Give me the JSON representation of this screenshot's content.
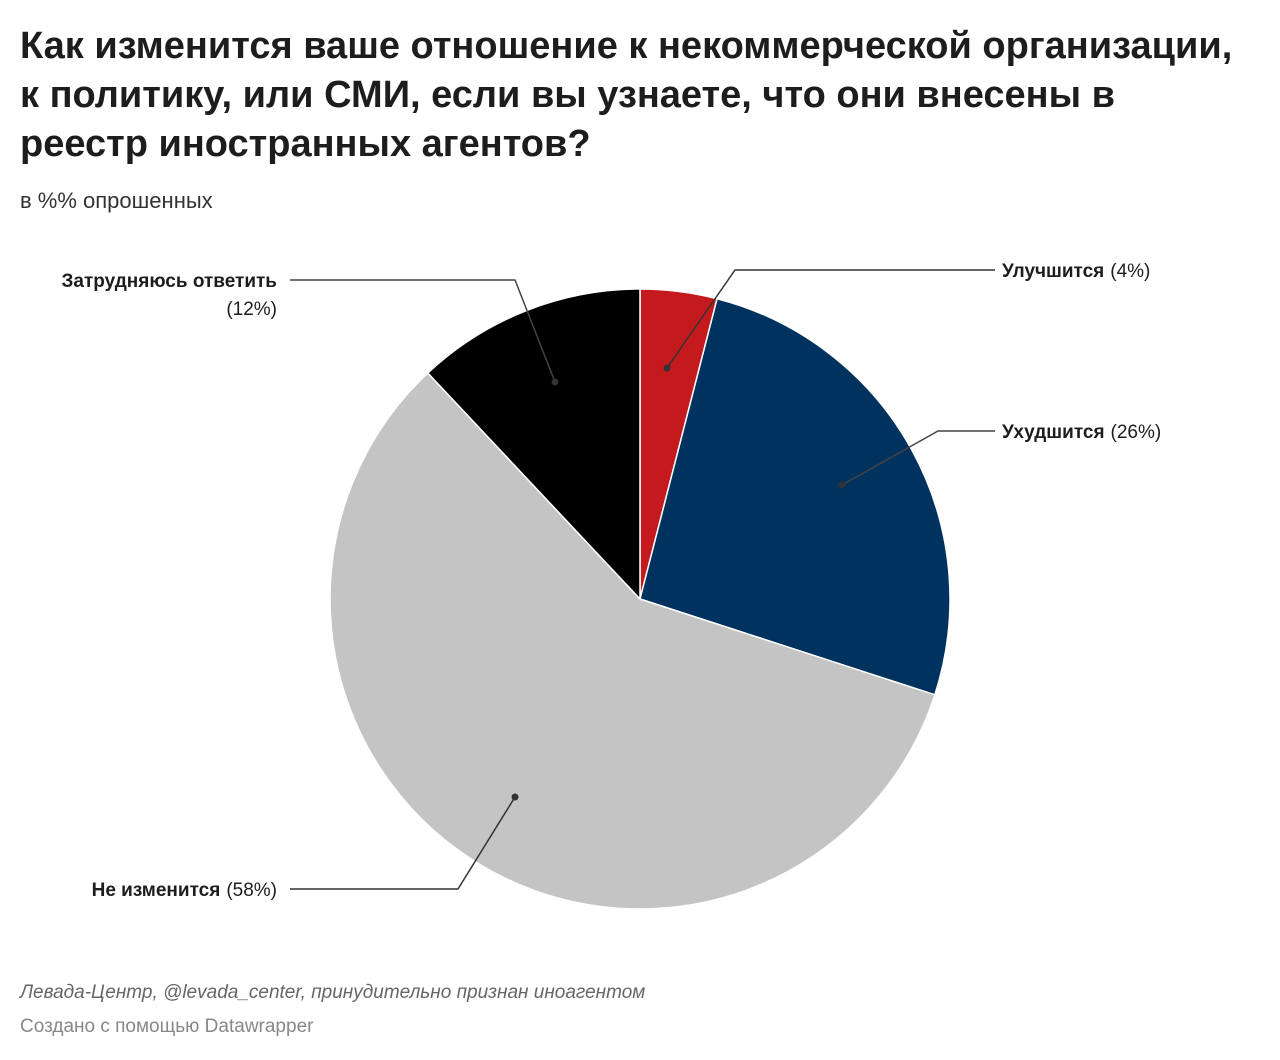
{
  "header": {
    "title": "Как изменится ваше отношение к некоммерческой организации, к политику, или СМИ, если вы узнаете, что они внесены в реестр иностранных агентов?",
    "subtitle": "в %% опрошенных"
  },
  "chart_data": {
    "type": "pie",
    "unit": "%",
    "slices": [
      {
        "name": "Улучшится",
        "value": 4,
        "color": "#c41a1d"
      },
      {
        "name": "Ухудшится",
        "value": 26,
        "color": "#00325f"
      },
      {
        "name": "Не изменится",
        "value": 58,
        "color": "#c4c4c4"
      },
      {
        "name": "Затрудняюсь ответить",
        "value": 12,
        "color": "#000000"
      }
    ]
  },
  "footer": {
    "source": "Левада-Центр, @levada_center, принудительно признан иноагентом",
    "credit": "Создано с помощью Datawrapper"
  }
}
